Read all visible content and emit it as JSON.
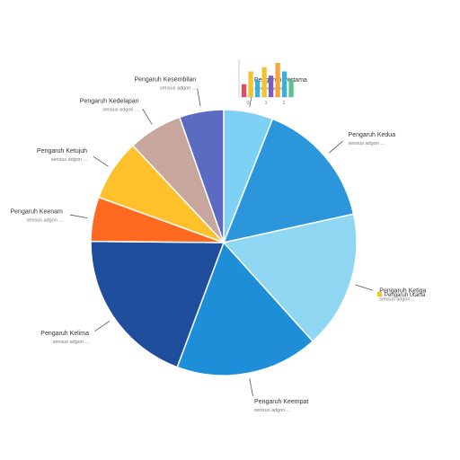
{
  "chart_data": {
    "type": "pie",
    "title": "",
    "slices": [
      {
        "label": "Pengaruh Pertama",
        "sublabel": "sensus adgon ...",
        "color": "#7fd0f5",
        "value": 20
      },
      {
        "label": "Pengaruh Kedua",
        "sublabel": "sensus adgon ...",
        "color": "#2b96dc",
        "value": 52
      },
      {
        "label": "Pengaruh Ketiga",
        "sublabel": "sensus adgon ...",
        "color": "#8fd6f2",
        "value": 56
      },
      {
        "label": "Pengaruh Keempat",
        "sublabel": "sensus adgon ...",
        "color": "#1e8ed8",
        "value": 58
      },
      {
        "label": "Pengaruh Kelima",
        "sublabel": "sensus adgon ...",
        "color": "#1f4e9c",
        "value": 65
      },
      {
        "label": "Pengaruh Keenam",
        "sublabel": "sensus adgon ...",
        "color": "#ff6a20",
        "value": 18
      },
      {
        "label": "Pengaruh Ketujuh",
        "sublabel": "sensus adgon ...",
        "color": "#ffc12b",
        "value": 25
      },
      {
        "label": "Pengaruh Kedelapan",
        "sublabel": "sensus adgon ...",
        "color": "#c7a69d",
        "value": 22
      },
      {
        "label": "Pengaruh Kesembilan",
        "sublabel": "sensus adgon ...",
        "color": "#5b6bc2",
        "value": 18
      }
    ],
    "legend": {
      "placement": "right",
      "entries": [
        {
          "label": "Pengaruh Utama",
          "color": "#f2c230"
        }
      ]
    },
    "inset_chart": {
      "type": "bar",
      "values": [
        3,
        6,
        4,
        7,
        5,
        8,
        6,
        4
      ],
      "colors": [
        "#e74a5a",
        "#f2c230",
        "#3ab0d6",
        "#f2c230",
        "#7b5ac2",
        "#f2a73a",
        "#3ab0d6",
        "#5ac28b"
      ],
      "tick_labels": [
        "0",
        "1",
        "2"
      ]
    },
    "grid": false
  }
}
